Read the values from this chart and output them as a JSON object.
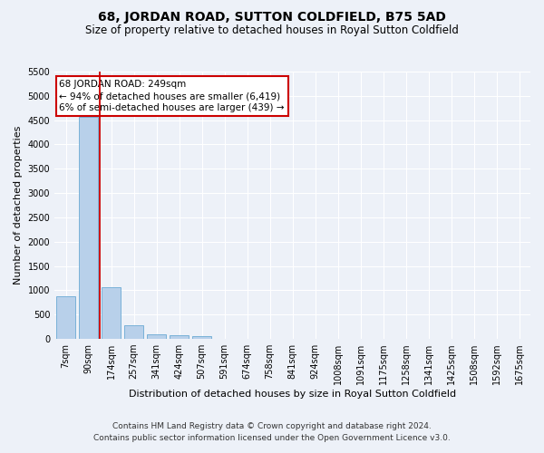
{
  "title": "68, JORDAN ROAD, SUTTON COLDFIELD, B75 5AD",
  "subtitle": "Size of property relative to detached houses in Royal Sutton Coldfield",
  "xlabel": "Distribution of detached houses by size in Royal Sutton Coldfield",
  "ylabel": "Number of detached properties",
  "footnote1": "Contains HM Land Registry data © Crown copyright and database right 2024.",
  "footnote2": "Contains public sector information licensed under the Open Government Licence v3.0.",
  "annotation_line1": "68 JORDAN ROAD: 249sqm",
  "annotation_line2": "← 94% of detached houses are smaller (6,419)",
  "annotation_line3": "6% of semi-detached houses are larger (439) →",
  "bar_labels": [
    "7sqm",
    "90sqm",
    "174sqm",
    "257sqm",
    "341sqm",
    "424sqm",
    "507sqm",
    "591sqm",
    "674sqm",
    "758sqm",
    "841sqm",
    "924sqm",
    "1008sqm",
    "1091sqm",
    "1175sqm",
    "1258sqm",
    "1341sqm",
    "1425sqm",
    "1508sqm",
    "1592sqm",
    "1675sqm"
  ],
  "bar_values": [
    880,
    4560,
    1060,
    280,
    90,
    80,
    55,
    0,
    0,
    0,
    0,
    0,
    0,
    0,
    0,
    0,
    0,
    0,
    0,
    0,
    0
  ],
  "bar_color": "#b8d0ea",
  "bar_edge_color": "#6aaad4",
  "reference_line_color": "#cc0000",
  "ylim": [
    0,
    5500
  ],
  "yticks": [
    0,
    500,
    1000,
    1500,
    2000,
    2500,
    3000,
    3500,
    4000,
    4500,
    5000,
    5500
  ],
  "bg_color": "#edf1f8",
  "plot_bg_color": "#edf1f8",
  "grid_color": "#ffffff",
  "annotation_box_facecolor": "#ffffff",
  "annotation_box_edgecolor": "#cc0000",
  "title_fontsize": 10,
  "subtitle_fontsize": 8.5,
  "annotation_fontsize": 7.5,
  "ylabel_fontsize": 8,
  "xlabel_fontsize": 8,
  "tick_fontsize": 7,
  "footnote_fontsize": 6.5
}
